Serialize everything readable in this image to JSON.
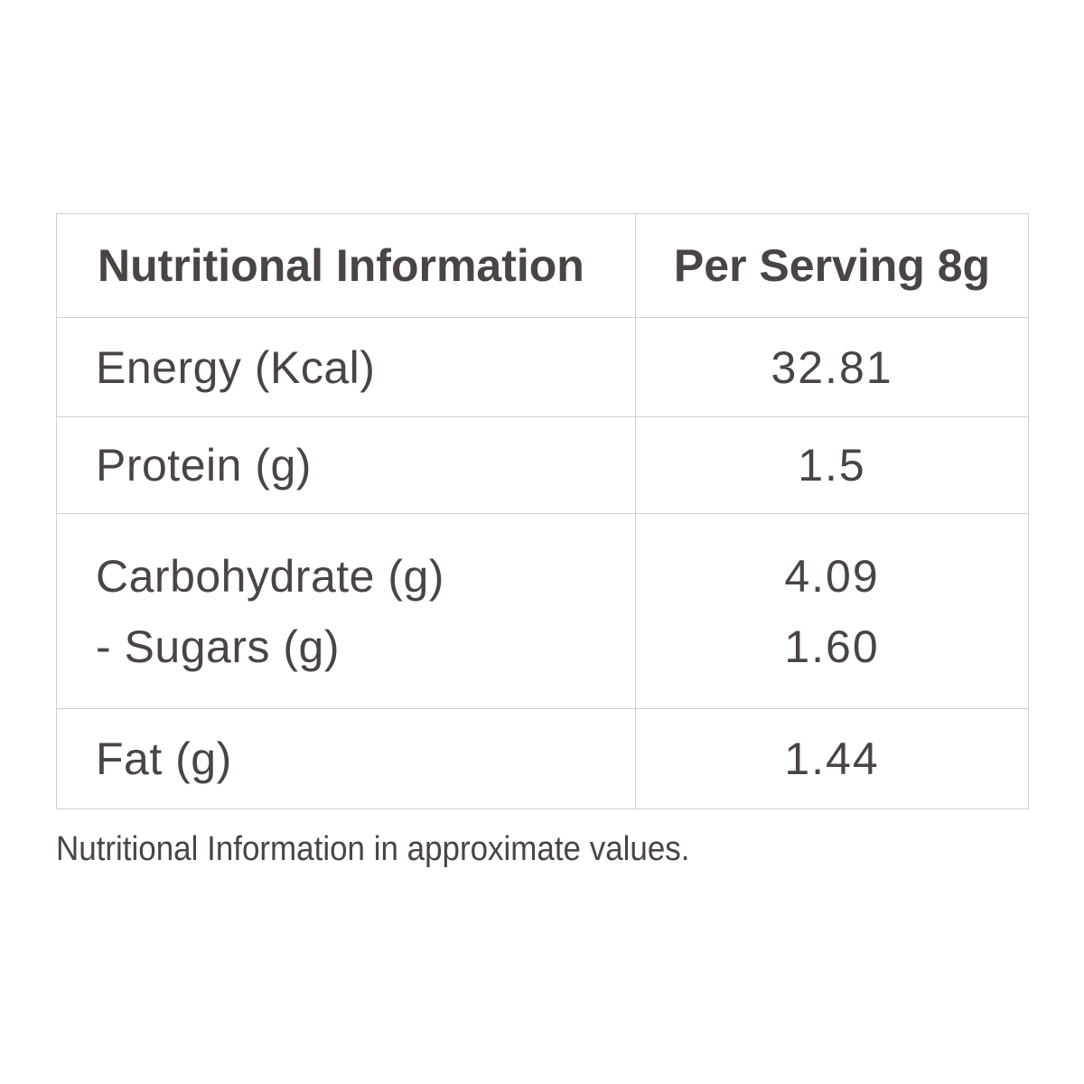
{
  "table": {
    "header": {
      "label": "Nutritional Information",
      "value": "Per Serving 8g"
    },
    "rows": [
      {
        "label": "Energy (Kcal)",
        "value": "32.81"
      },
      {
        "label": "Protein (g)",
        "value": "1.5"
      },
      {
        "label": "Carbohydrate (g)",
        "value": "4.09",
        "sub_label": "- Sugars (g)",
        "sub_value": "1.60"
      },
      {
        "label": "Fat (g)",
        "value": "1.44"
      }
    ]
  },
  "footnote": "Nutritional Information in approximate values.",
  "colors": {
    "text": "#4a4443",
    "border": "#cfcfcf",
    "background": "#ffffff"
  }
}
